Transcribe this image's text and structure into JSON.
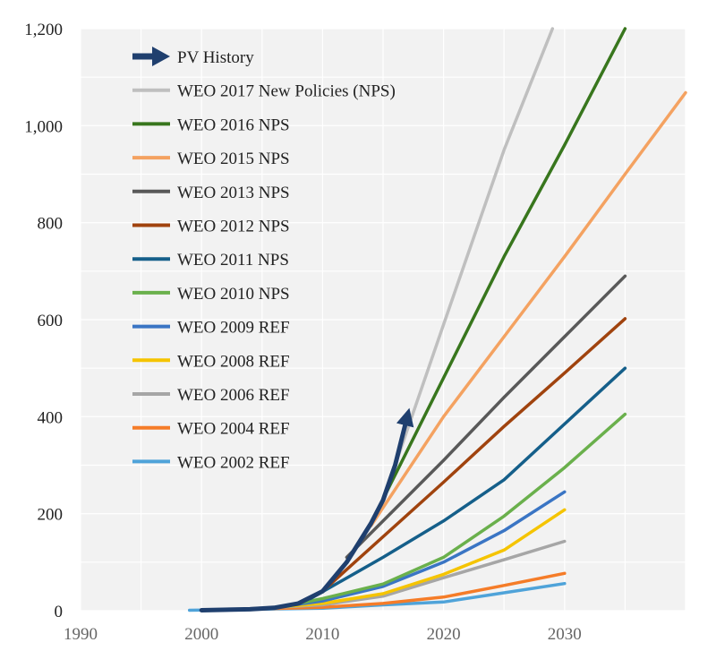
{
  "chart_data": {
    "type": "line",
    "title": "",
    "xlabel": "",
    "ylabel": "",
    "xlim": [
      1990,
      2040
    ],
    "ylim": [
      0,
      1200
    ],
    "x_ticks": [
      "1990",
      "2000",
      "2010",
      "2020",
      "2030"
    ],
    "y_ticks": [
      "0",
      "200",
      "400",
      "600",
      "800",
      "1,000",
      "1,200"
    ],
    "grid": true,
    "legend_position": "top-left",
    "colors": {
      "background": "#f2f2f2",
      "grid": "#ffffff"
    },
    "series": [
      {
        "name": "PV History",
        "color": "#1f3f6e",
        "arrow": true,
        "points": [
          [
            2000,
            1
          ],
          [
            2004,
            3
          ],
          [
            2006,
            6
          ],
          [
            2008,
            15
          ],
          [
            2010,
            40
          ],
          [
            2012,
            100
          ],
          [
            2014,
            180
          ],
          [
            2015,
            228
          ],
          [
            2016,
            300
          ],
          [
            2017,
            400
          ]
        ]
      },
      {
        "name": "WEO 2017 New Policies (NPS)",
        "color": "#bfbfbf",
        "points": [
          [
            2016,
            300
          ],
          [
            2020,
            590
          ],
          [
            2025,
            950
          ],
          [
            2029,
            1200
          ]
        ]
      },
      {
        "name": "WEO 2016 NPS",
        "color": "#38761d",
        "points": [
          [
            2015,
            230
          ],
          [
            2020,
            480
          ],
          [
            2025,
            730
          ],
          [
            2030,
            960
          ],
          [
            2035,
            1200
          ]
        ]
      },
      {
        "name": "WEO 2015 NPS",
        "color": "#f4a261",
        "points": [
          [
            2014,
            175
          ],
          [
            2020,
            400
          ],
          [
            2025,
            565
          ],
          [
            2030,
            730
          ],
          [
            2035,
            900
          ],
          [
            2040,
            1068
          ]
        ]
      },
      {
        "name": "WEO 2013 NPS",
        "color": "#595959",
        "points": [
          [
            2012,
            110
          ],
          [
            2020,
            310
          ],
          [
            2025,
            440
          ],
          [
            2030,
            565
          ],
          [
            2035,
            690
          ]
        ]
      },
      {
        "name": "WEO 2012 NPS",
        "color": "#a0430e",
        "points": [
          [
            2010,
            40
          ],
          [
            2020,
            265
          ],
          [
            2025,
            380
          ],
          [
            2030,
            490
          ],
          [
            2035,
            602
          ]
        ]
      },
      {
        "name": "WEO 2011 NPS",
        "color": "#155f8a",
        "points": [
          [
            2009,
            25
          ],
          [
            2015,
            110
          ],
          [
            2020,
            185
          ],
          [
            2025,
            270
          ],
          [
            2030,
            385
          ],
          [
            2035,
            500
          ]
        ]
      },
      {
        "name": "WEO 2010 NPS",
        "color": "#6ab04c",
        "points": [
          [
            2008,
            15
          ],
          [
            2010,
            25
          ],
          [
            2015,
            55
          ],
          [
            2020,
            110
          ],
          [
            2025,
            195
          ],
          [
            2030,
            295
          ],
          [
            2035,
            405
          ]
        ]
      },
      {
        "name": "WEO 2009 REF",
        "color": "#3a75c4",
        "points": [
          [
            2007,
            10
          ],
          [
            2010,
            20
          ],
          [
            2015,
            50
          ],
          [
            2020,
            100
          ],
          [
            2025,
            165
          ],
          [
            2030,
            245
          ]
        ]
      },
      {
        "name": "WEO 2008 REF",
        "color": "#f5c400",
        "points": [
          [
            2006,
            7
          ],
          [
            2010,
            15
          ],
          [
            2015,
            35
          ],
          [
            2020,
            75
          ],
          [
            2025,
            125
          ],
          [
            2030,
            208
          ]
        ]
      },
      {
        "name": "WEO 2006 REF",
        "color": "#a6a6a6",
        "points": [
          [
            2004,
            4
          ],
          [
            2010,
            12
          ],
          [
            2015,
            30
          ],
          [
            2020,
            68
          ],
          [
            2025,
            105
          ],
          [
            2030,
            143
          ]
        ]
      },
      {
        "name": "WEO 2004 REF",
        "color": "#f57c28",
        "points": [
          [
            2002,
            2
          ],
          [
            2010,
            7
          ],
          [
            2015,
            15
          ],
          [
            2020,
            28
          ],
          [
            2025,
            52
          ],
          [
            2030,
            77
          ]
        ]
      },
      {
        "name": "WEO 2002 REF",
        "color": "#4fa3d9",
        "points": [
          [
            1999,
            1
          ],
          [
            2010,
            5
          ],
          [
            2015,
            12
          ],
          [
            2020,
            18
          ],
          [
            2025,
            37
          ],
          [
            2030,
            56
          ]
        ]
      }
    ]
  }
}
